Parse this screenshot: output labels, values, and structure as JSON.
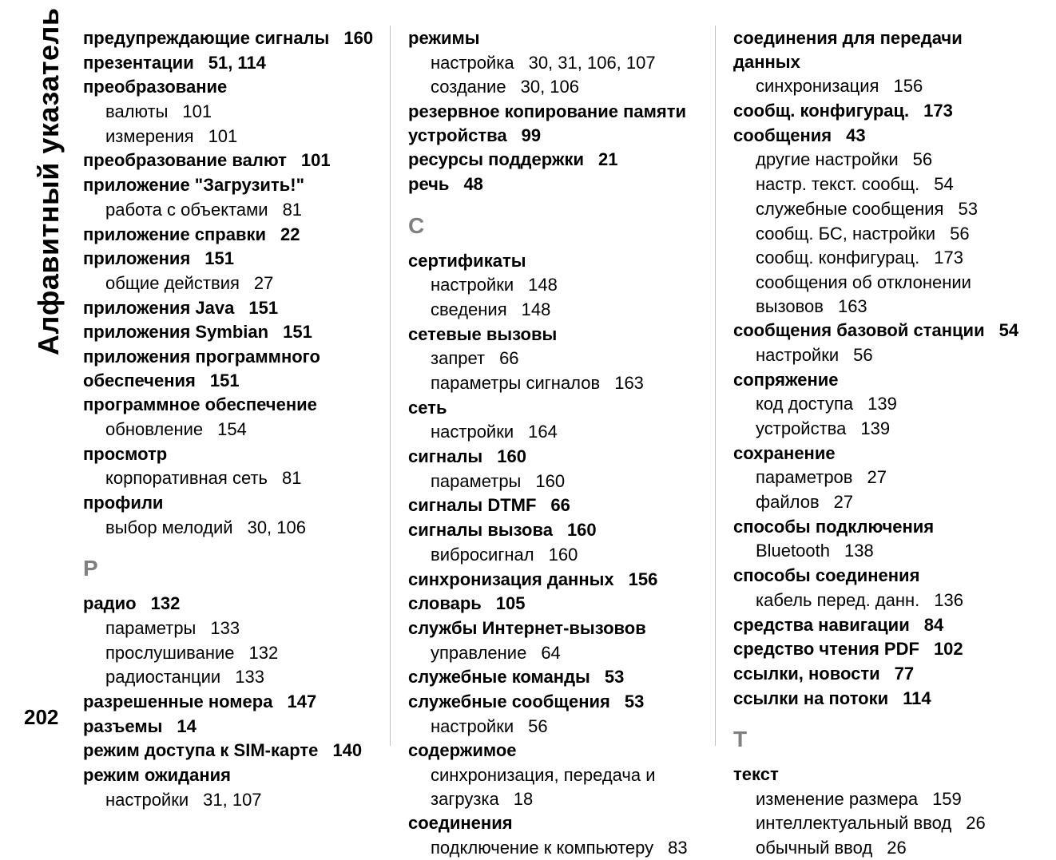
{
  "sidebar_title": "Алфавитный указатель",
  "page_number": "202",
  "letters": {
    "R": "Р",
    "S": "С",
    "T": "Т"
  },
  "col1": [
    {
      "t": "main",
      "term": "предупреждающие сигналы",
      "p": "160"
    },
    {
      "t": "main",
      "term": "презентации",
      "p": "51, 114"
    },
    {
      "t": "main",
      "term": "преобразование",
      "p": ""
    },
    {
      "t": "sub",
      "term": "валюты",
      "p": "101"
    },
    {
      "t": "sub",
      "term": "измерения",
      "p": "101"
    },
    {
      "t": "main",
      "term": "преобразование валют",
      "p": "101"
    },
    {
      "t": "main",
      "term": "приложение \"Загрузить!\"",
      "p": ""
    },
    {
      "t": "sub",
      "term": "работа с объектами",
      "p": "81"
    },
    {
      "t": "main",
      "term": "приложение справки",
      "p": "22"
    },
    {
      "t": "main",
      "term": "приложения",
      "p": "151"
    },
    {
      "t": "sub",
      "term": "общие действия",
      "p": "27"
    },
    {
      "t": "main",
      "term": "приложения Java",
      "p": "151"
    },
    {
      "t": "main",
      "term": "приложения Symbian",
      "p": "151"
    },
    {
      "t": "main",
      "term": "приложения программного обеспечения",
      "p": "151"
    },
    {
      "t": "main",
      "term": "программное обеспечение",
      "p": ""
    },
    {
      "t": "sub",
      "term": "обновление",
      "p": "154"
    },
    {
      "t": "main",
      "term": "просмотр",
      "p": ""
    },
    {
      "t": "sub",
      "term": "корпоративная сеть",
      "p": "81"
    },
    {
      "t": "main",
      "term": "профили",
      "p": ""
    },
    {
      "t": "sub",
      "term": "выбор мелодий",
      "p": "30, 106"
    },
    {
      "t": "letter",
      "key": "R"
    },
    {
      "t": "main",
      "term": "радио",
      "p": "132"
    },
    {
      "t": "sub",
      "term": "параметры",
      "p": "133"
    },
    {
      "t": "sub",
      "term": "прослушивание",
      "p": "132"
    },
    {
      "t": "sub",
      "term": "радиостанции",
      "p": "133"
    },
    {
      "t": "main",
      "term": "разрешенные номера",
      "p": "147"
    },
    {
      "t": "main",
      "term": "разъемы",
      "p": "14"
    },
    {
      "t": "main",
      "term": "режим доступа к SIM-карте",
      "p": "140"
    },
    {
      "t": "main",
      "term": "режим ожидания",
      "p": ""
    },
    {
      "t": "sub",
      "term": "настройки",
      "p": "31, 107"
    }
  ],
  "col2": [
    {
      "t": "main",
      "term": "режимы",
      "p": ""
    },
    {
      "t": "sub",
      "term": "настройка",
      "p": "30, 31, 106, 107"
    },
    {
      "t": "sub",
      "term": "создание",
      "p": "30, 106"
    },
    {
      "t": "main",
      "term": "резервное копирование памяти устройства",
      "p": "99"
    },
    {
      "t": "main",
      "term": "ресурсы поддержки",
      "p": "21"
    },
    {
      "t": "main",
      "term": "речь",
      "p": "48"
    },
    {
      "t": "letter",
      "key": "S"
    },
    {
      "t": "main",
      "term": "сертификаты",
      "p": ""
    },
    {
      "t": "sub",
      "term": "настройки",
      "p": "148"
    },
    {
      "t": "sub",
      "term": "сведения",
      "p": "148"
    },
    {
      "t": "main",
      "term": "сетевые вызовы",
      "p": ""
    },
    {
      "t": "sub",
      "term": "запрет",
      "p": "66"
    },
    {
      "t": "sub",
      "term": "параметры сигналов",
      "p": "163"
    },
    {
      "t": "main",
      "term": "сеть",
      "p": ""
    },
    {
      "t": "sub",
      "term": "настройки",
      "p": "164"
    },
    {
      "t": "main",
      "term": "сигналы",
      "p": "160"
    },
    {
      "t": "sub",
      "term": "параметры",
      "p": "160"
    },
    {
      "t": "main",
      "term": "сигналы DTMF",
      "p": "66"
    },
    {
      "t": "main",
      "term": "сигналы вызова",
      "p": "160"
    },
    {
      "t": "sub",
      "term": "вибросигнал",
      "p": "160"
    },
    {
      "t": "main",
      "term": "синхронизация данных",
      "p": "156"
    },
    {
      "t": "main",
      "term": "словарь",
      "p": "105"
    },
    {
      "t": "main",
      "term": "службы Интернет-вызовов",
      "p": ""
    },
    {
      "t": "sub",
      "term": "управление",
      "p": "64"
    },
    {
      "t": "main",
      "term": "служебные команды",
      "p": "53"
    },
    {
      "t": "main",
      "term": "служебные сообщения",
      "p": "53"
    },
    {
      "t": "sub",
      "term": "настройки",
      "p": "56"
    },
    {
      "t": "main",
      "term": "содержимое",
      "p": ""
    },
    {
      "t": "sub",
      "term": "синхронизация, передача и загрузка",
      "p": "18"
    },
    {
      "t": "main",
      "term": "соединения",
      "p": ""
    },
    {
      "t": "sub",
      "term": "подключение к компьютеру",
      "p": "83"
    }
  ],
  "col3": [
    {
      "t": "main",
      "term": "соединения для передачи данных",
      "p": ""
    },
    {
      "t": "sub",
      "term": "синхронизация",
      "p": "156"
    },
    {
      "t": "main",
      "term": "сообщ. конфигурац.",
      "p": "173"
    },
    {
      "t": "main",
      "term": "сообщения",
      "p": "43"
    },
    {
      "t": "sub",
      "term": "другие настройки",
      "p": "56"
    },
    {
      "t": "sub",
      "term": "настр. текст. сообщ.",
      "p": "54"
    },
    {
      "t": "sub",
      "term": "служебные сообщения",
      "p": "53"
    },
    {
      "t": "sub",
      "term": "сообщ. БС, настройки",
      "p": "56"
    },
    {
      "t": "sub",
      "term": "сообщ. конфигурац.",
      "p": "173"
    },
    {
      "t": "sub",
      "term": "сообщения об отклонении вызовов",
      "p": "163"
    },
    {
      "t": "main",
      "term": "сообщения базовой станции",
      "p": "54"
    },
    {
      "t": "sub",
      "term": "настройки",
      "p": "56"
    },
    {
      "t": "main",
      "term": "сопряжение",
      "p": ""
    },
    {
      "t": "sub",
      "term": "код доступа",
      "p": "139"
    },
    {
      "t": "sub",
      "term": "устройства",
      "p": "139"
    },
    {
      "t": "main",
      "term": "сохранение",
      "p": ""
    },
    {
      "t": "sub",
      "term": "параметров",
      "p": "27"
    },
    {
      "t": "sub",
      "term": "файлов",
      "p": "27"
    },
    {
      "t": "main",
      "term": "способы подключения",
      "p": ""
    },
    {
      "t": "sub",
      "term": "Bluetooth",
      "p": "138"
    },
    {
      "t": "main",
      "term": "способы соединения",
      "p": ""
    },
    {
      "t": "sub",
      "term": "кабель перед. данн.",
      "p": "136"
    },
    {
      "t": "main",
      "term": "средства навигации",
      "p": "84"
    },
    {
      "t": "main",
      "term": "средство чтения PDF",
      "p": "102"
    },
    {
      "t": "main",
      "term": "ссылки, новости",
      "p": "77"
    },
    {
      "t": "main",
      "term": "ссылки на потоки",
      "p": "114"
    },
    {
      "t": "letter",
      "key": "T"
    },
    {
      "t": "main",
      "term": "текст",
      "p": ""
    },
    {
      "t": "sub",
      "term": "изменение размера",
      "p": "159"
    },
    {
      "t": "sub",
      "term": "интеллектуальный ввод",
      "p": "26"
    },
    {
      "t": "sub",
      "term": "обычный ввод",
      "p": "26"
    }
  ]
}
